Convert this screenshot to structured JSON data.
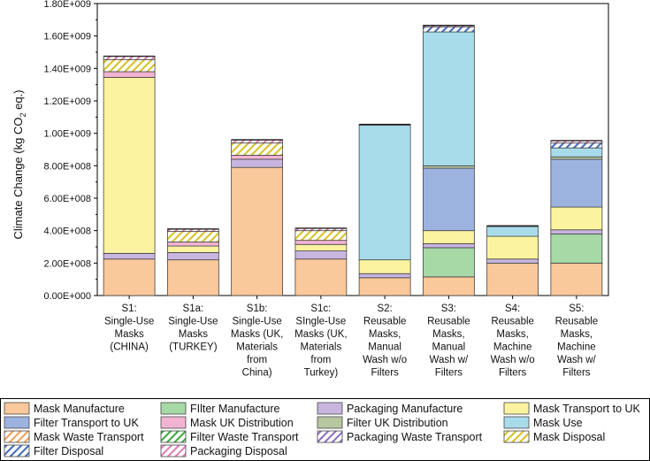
{
  "chart_data": {
    "type": "stacked-bar",
    "title": "",
    "xlabel": "",
    "ylabel": "Climate Change (kg CO2 eq.)",
    "ylabel_main": "Climate Change (kg CO",
    "ylabel_sub": "2",
    "ylabel_tail": " eq.)",
    "ylim": [
      0,
      1800000000
    ],
    "yticks": [
      {
        "value": 0,
        "label": "0.00E+000"
      },
      {
        "value": 200000000,
        "label": "2.00E+008"
      },
      {
        "value": 400000000,
        "label": "4.00E+008"
      },
      {
        "value": 600000000,
        "label": "6.00E+008"
      },
      {
        "value": 800000000,
        "label": "8.00E+008"
      },
      {
        "value": 1000000000,
        "label": "1.00E+009"
      },
      {
        "value": 1200000000,
        "label": "1.20E+009"
      },
      {
        "value": 1400000000,
        "label": "1.40E+009"
      },
      {
        "value": 1600000000,
        "label": "1.60E+009"
      },
      {
        "value": 1800000000,
        "label": "1.80E+009"
      }
    ],
    "categories": [
      "S1: Single-Use Masks (CHINA)",
      "S1a: Single-Use Masks (TURKEY)",
      "S1b: Single-Use Masks (UK, Materials from China)",
      "S1c: SIngle-Use Masks (UK, Materials from Turkey)",
      "S2: Reusable Masks, Manual Wash w/o Filters",
      "S3: Reusable Masks, Manual Wash w/ Filters",
      "S4: Reusable Masks, Machine Wash w/o Filters",
      "S5: Reusable Masks, Machine Wash w/ Filters"
    ],
    "category_lines": [
      [
        "S1:",
        "Single-Use",
        "Masks",
        "(CHINA)"
      ],
      [
        "S1a:",
        "Single-Use",
        "Masks",
        "(TURKEY)"
      ],
      [
        "S1b:",
        "Single-Use",
        "Masks (UK,",
        "Materials",
        "from",
        "China)"
      ],
      [
        "S1c:",
        "SIngle-Use",
        "Masks (UK,",
        "Materials",
        "from",
        "Turkey)"
      ],
      [
        "S2:",
        "Reusable",
        "Masks,",
        "Manual",
        "Wash w/o",
        "Filters"
      ],
      [
        "S3:",
        "Reusable",
        "Masks,",
        "Manual",
        "Wash w/",
        "Filters"
      ],
      [
        "S4:",
        "Reusable",
        "Masks,",
        "Machine",
        "Wash w/o",
        "Filters"
      ],
      [
        "S5:",
        "Reusable",
        "Masks,",
        "Machine",
        "Wash w/",
        "Filters"
      ]
    ],
    "series": [
      {
        "name": "Mask Manufacture",
        "color": "#f9c89b",
        "pattern": "solid",
        "values": [
          225000000,
          220000000,
          790000000,
          225000000,
          110000000,
          115000000,
          200000000,
          200000000
        ]
      },
      {
        "name": "FIlter Manufacture",
        "color": "#a6d9a6",
        "pattern": "solid",
        "values": [
          0,
          0,
          0,
          0,
          0,
          180000000,
          0,
          180000000
        ]
      },
      {
        "name": "Packaging Manufacture",
        "color": "#c8b6e0",
        "pattern": "solid",
        "values": [
          35000000,
          45000000,
          50000000,
          50000000,
          25000000,
          25000000,
          25000000,
          25000000
        ]
      },
      {
        "name": "Mask Transport to UK",
        "color": "#fbf3a0",
        "pattern": "solid",
        "values": [
          1085000000,
          40000000,
          0,
          40000000,
          85000000,
          80000000,
          140000000,
          140000000
        ]
      },
      {
        "name": "Filter Transport to UK",
        "color": "#9db3df",
        "pattern": "solid",
        "values": [
          0,
          0,
          0,
          0,
          0,
          385000000,
          0,
          295000000
        ]
      },
      {
        "name": "Mask UK Distribution",
        "color": "#f2b3d2",
        "pattern": "solid",
        "values": [
          35000000,
          25000000,
          25000000,
          25000000,
          0,
          0,
          0,
          0
        ]
      },
      {
        "name": "Filter UK Distribution",
        "color": "#b7c7a0",
        "pattern": "solid",
        "values": [
          0,
          0,
          0,
          0,
          0,
          15000000,
          0,
          15000000
        ]
      },
      {
        "name": "Mask Use",
        "color": "#a9dceb",
        "pattern": "solid",
        "values": [
          0,
          0,
          0,
          0,
          830000000,
          825000000,
          60000000,
          55000000
        ]
      },
      {
        "name": "Mask Waste Transport",
        "color": "#f4a25a",
        "pattern": "hatch",
        "values": [
          0,
          0,
          0,
          0,
          0,
          0,
          0,
          0
        ]
      },
      {
        "name": "Filter Waste Transport",
        "color": "#3ea83e",
        "pattern": "hatch",
        "values": [
          0,
          0,
          0,
          0,
          0,
          0,
          0,
          0
        ]
      },
      {
        "name": "Packaging Waste Transport",
        "color": "#8b70c0",
        "pattern": "hatch",
        "values": [
          0,
          0,
          0,
          0,
          0,
          0,
          0,
          0
        ]
      },
      {
        "name": "Mask Disposal",
        "color": "#d6c22a",
        "pattern": "hatch",
        "values": [
          75000000,
          65000000,
          75000000,
          60000000,
          0,
          0,
          0,
          0
        ]
      },
      {
        "name": "Filter Disposal",
        "color": "#4a6fb8",
        "pattern": "hatch",
        "values": [
          0,
          0,
          0,
          0,
          0,
          30000000,
          0,
          30000000
        ]
      },
      {
        "name": "Packaging Disposal",
        "color": "#e27fb5",
        "pattern": "hatch",
        "values": [
          20000000,
          15000000,
          20000000,
          15000000,
          5000000,
          10000000,
          5000000,
          15000000
        ]
      }
    ],
    "legend": {
      "placement": "bottom",
      "columns": 4
    }
  }
}
